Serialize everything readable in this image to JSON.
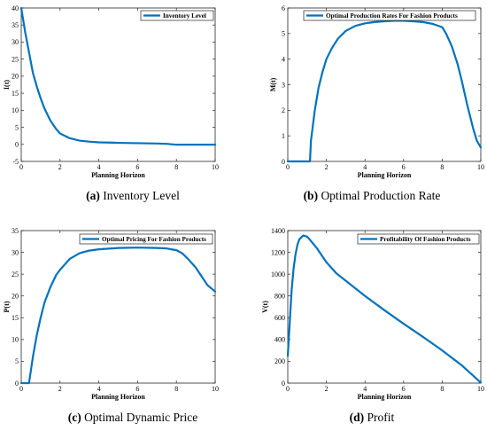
{
  "chart_data": [
    {
      "type": "line",
      "caption_tag": "(a)",
      "caption": "Inventory Level",
      "xlabel": "Planning Horizon",
      "ylabel": "I(t)",
      "legend_position": "top-right",
      "xlim": [
        0,
        10
      ],
      "ylim": [
        -5,
        40
      ],
      "xticks": [
        0,
        2,
        4,
        6,
        8,
        10
      ],
      "yticks": [
        -5,
        0,
        5,
        10,
        15,
        20,
        25,
        30,
        35,
        40
      ],
      "grid": false,
      "color": "#0072BD",
      "series": [
        {
          "name": "Inventory Level",
          "x": [
            0,
            0.2,
            0.4,
            0.6,
            0.8,
            1.0,
            1.2,
            1.5,
            1.8,
            2.0,
            2.5,
            3.0,
            3.5,
            4.0,
            5.0,
            6.0,
            7.0,
            7.5,
            8.0,
            9.0,
            10.0
          ],
          "y": [
            40,
            33,
            27,
            21,
            17,
            13.5,
            10.5,
            7,
            4.5,
            3.2,
            1.8,
            1.1,
            0.8,
            0.6,
            0.45,
            0.35,
            0.25,
            0.15,
            -0.1,
            -0.1,
            -0.1
          ]
        }
      ]
    },
    {
      "type": "line",
      "caption_tag": "(b)",
      "caption": "Optimal Production Rate",
      "xlabel": "Planning Horizon",
      "ylabel": "M(t)",
      "legend_position": "top",
      "xlim": [
        0,
        10
      ],
      "ylim": [
        0,
        6
      ],
      "xticks": [
        0,
        2,
        4,
        6,
        8,
        10
      ],
      "yticks": [
        0,
        1,
        2,
        3,
        4,
        5,
        6
      ],
      "grid": false,
      "color": "#0072BD",
      "series": [
        {
          "name": "Optimal Production Rates For Fashion Products",
          "x": [
            0,
            1.15,
            1.2,
            1.4,
            1.6,
            1.8,
            2.0,
            2.3,
            2.6,
            3.0,
            3.5,
            4.0,
            4.5,
            5.0,
            5.5,
            6.0,
            6.5,
            7.0,
            7.5,
            8.0,
            8.2,
            8.5,
            8.8,
            9.0,
            9.3,
            9.6,
            9.8,
            10.0
          ],
          "y": [
            0,
            0,
            0.8,
            2.0,
            2.9,
            3.5,
            4.0,
            4.45,
            4.8,
            5.1,
            5.3,
            5.4,
            5.45,
            5.48,
            5.5,
            5.5,
            5.48,
            5.45,
            5.38,
            5.25,
            5.0,
            4.5,
            3.8,
            3.2,
            2.2,
            1.3,
            0.8,
            0.55
          ]
        }
      ]
    },
    {
      "type": "line",
      "caption_tag": "(c)",
      "caption": "Optimal Dynamic Price",
      "xlabel": "Planning Horizon",
      "ylabel": "P(t)",
      "legend_position": "top-right",
      "xlim": [
        0,
        10
      ],
      "ylim": [
        0,
        35
      ],
      "xticks": [
        0,
        2,
        4,
        6,
        8,
        10
      ],
      "yticks": [
        0,
        5,
        10,
        15,
        20,
        25,
        30,
        35
      ],
      "grid": false,
      "color": "#0072BD",
      "series": [
        {
          "name": "Optimal Pricing For Fashion Products",
          "x": [
            0,
            0.4,
            0.5,
            0.6,
            0.8,
            1.0,
            1.2,
            1.5,
            1.8,
            2.0,
            2.5,
            3.0,
            3.5,
            4.0,
            5.0,
            6.0,
            7.0,
            7.5,
            8.0,
            8.3,
            8.6,
            9.0,
            9.3,
            9.6,
            10.0
          ],
          "y": [
            0,
            0,
            3,
            6,
            11,
            15,
            18.5,
            22,
            24.8,
            26,
            28.5,
            29.8,
            30.4,
            30.7,
            31,
            31.1,
            31,
            30.9,
            30.5,
            29.8,
            28.5,
            26.5,
            24.5,
            22.5,
            21
          ]
        }
      ]
    },
    {
      "type": "line",
      "caption_tag": "(d)",
      "caption": "Profit",
      "xlabel": "Planning Horizon",
      "ylabel": "V(t)",
      "legend_position": "top-right",
      "xlim": [
        0,
        10
      ],
      "ylim": [
        0,
        1400
      ],
      "xticks": [
        0,
        2,
        4,
        6,
        8,
        10
      ],
      "yticks": [
        0,
        200,
        400,
        600,
        800,
        1000,
        1200,
        1400
      ],
      "grid": false,
      "color": "#0072BD",
      "series": [
        {
          "name": "Profitability Of Fashion Products",
          "x": [
            0,
            0.1,
            0.2,
            0.3,
            0.4,
            0.5,
            0.6,
            0.8,
            1.0,
            1.2,
            1.5,
            2.0,
            2.5,
            3.0,
            4.0,
            5.0,
            6.0,
            7.0,
            8.0,
            9.0,
            9.5,
            10.0
          ],
          "y": [
            250,
            550,
            850,
            1050,
            1180,
            1270,
            1320,
            1355,
            1345,
            1305,
            1240,
            1110,
            1010,
            940,
            800,
            670,
            545,
            425,
            300,
            165,
            85,
            5
          ]
        }
      ]
    }
  ]
}
